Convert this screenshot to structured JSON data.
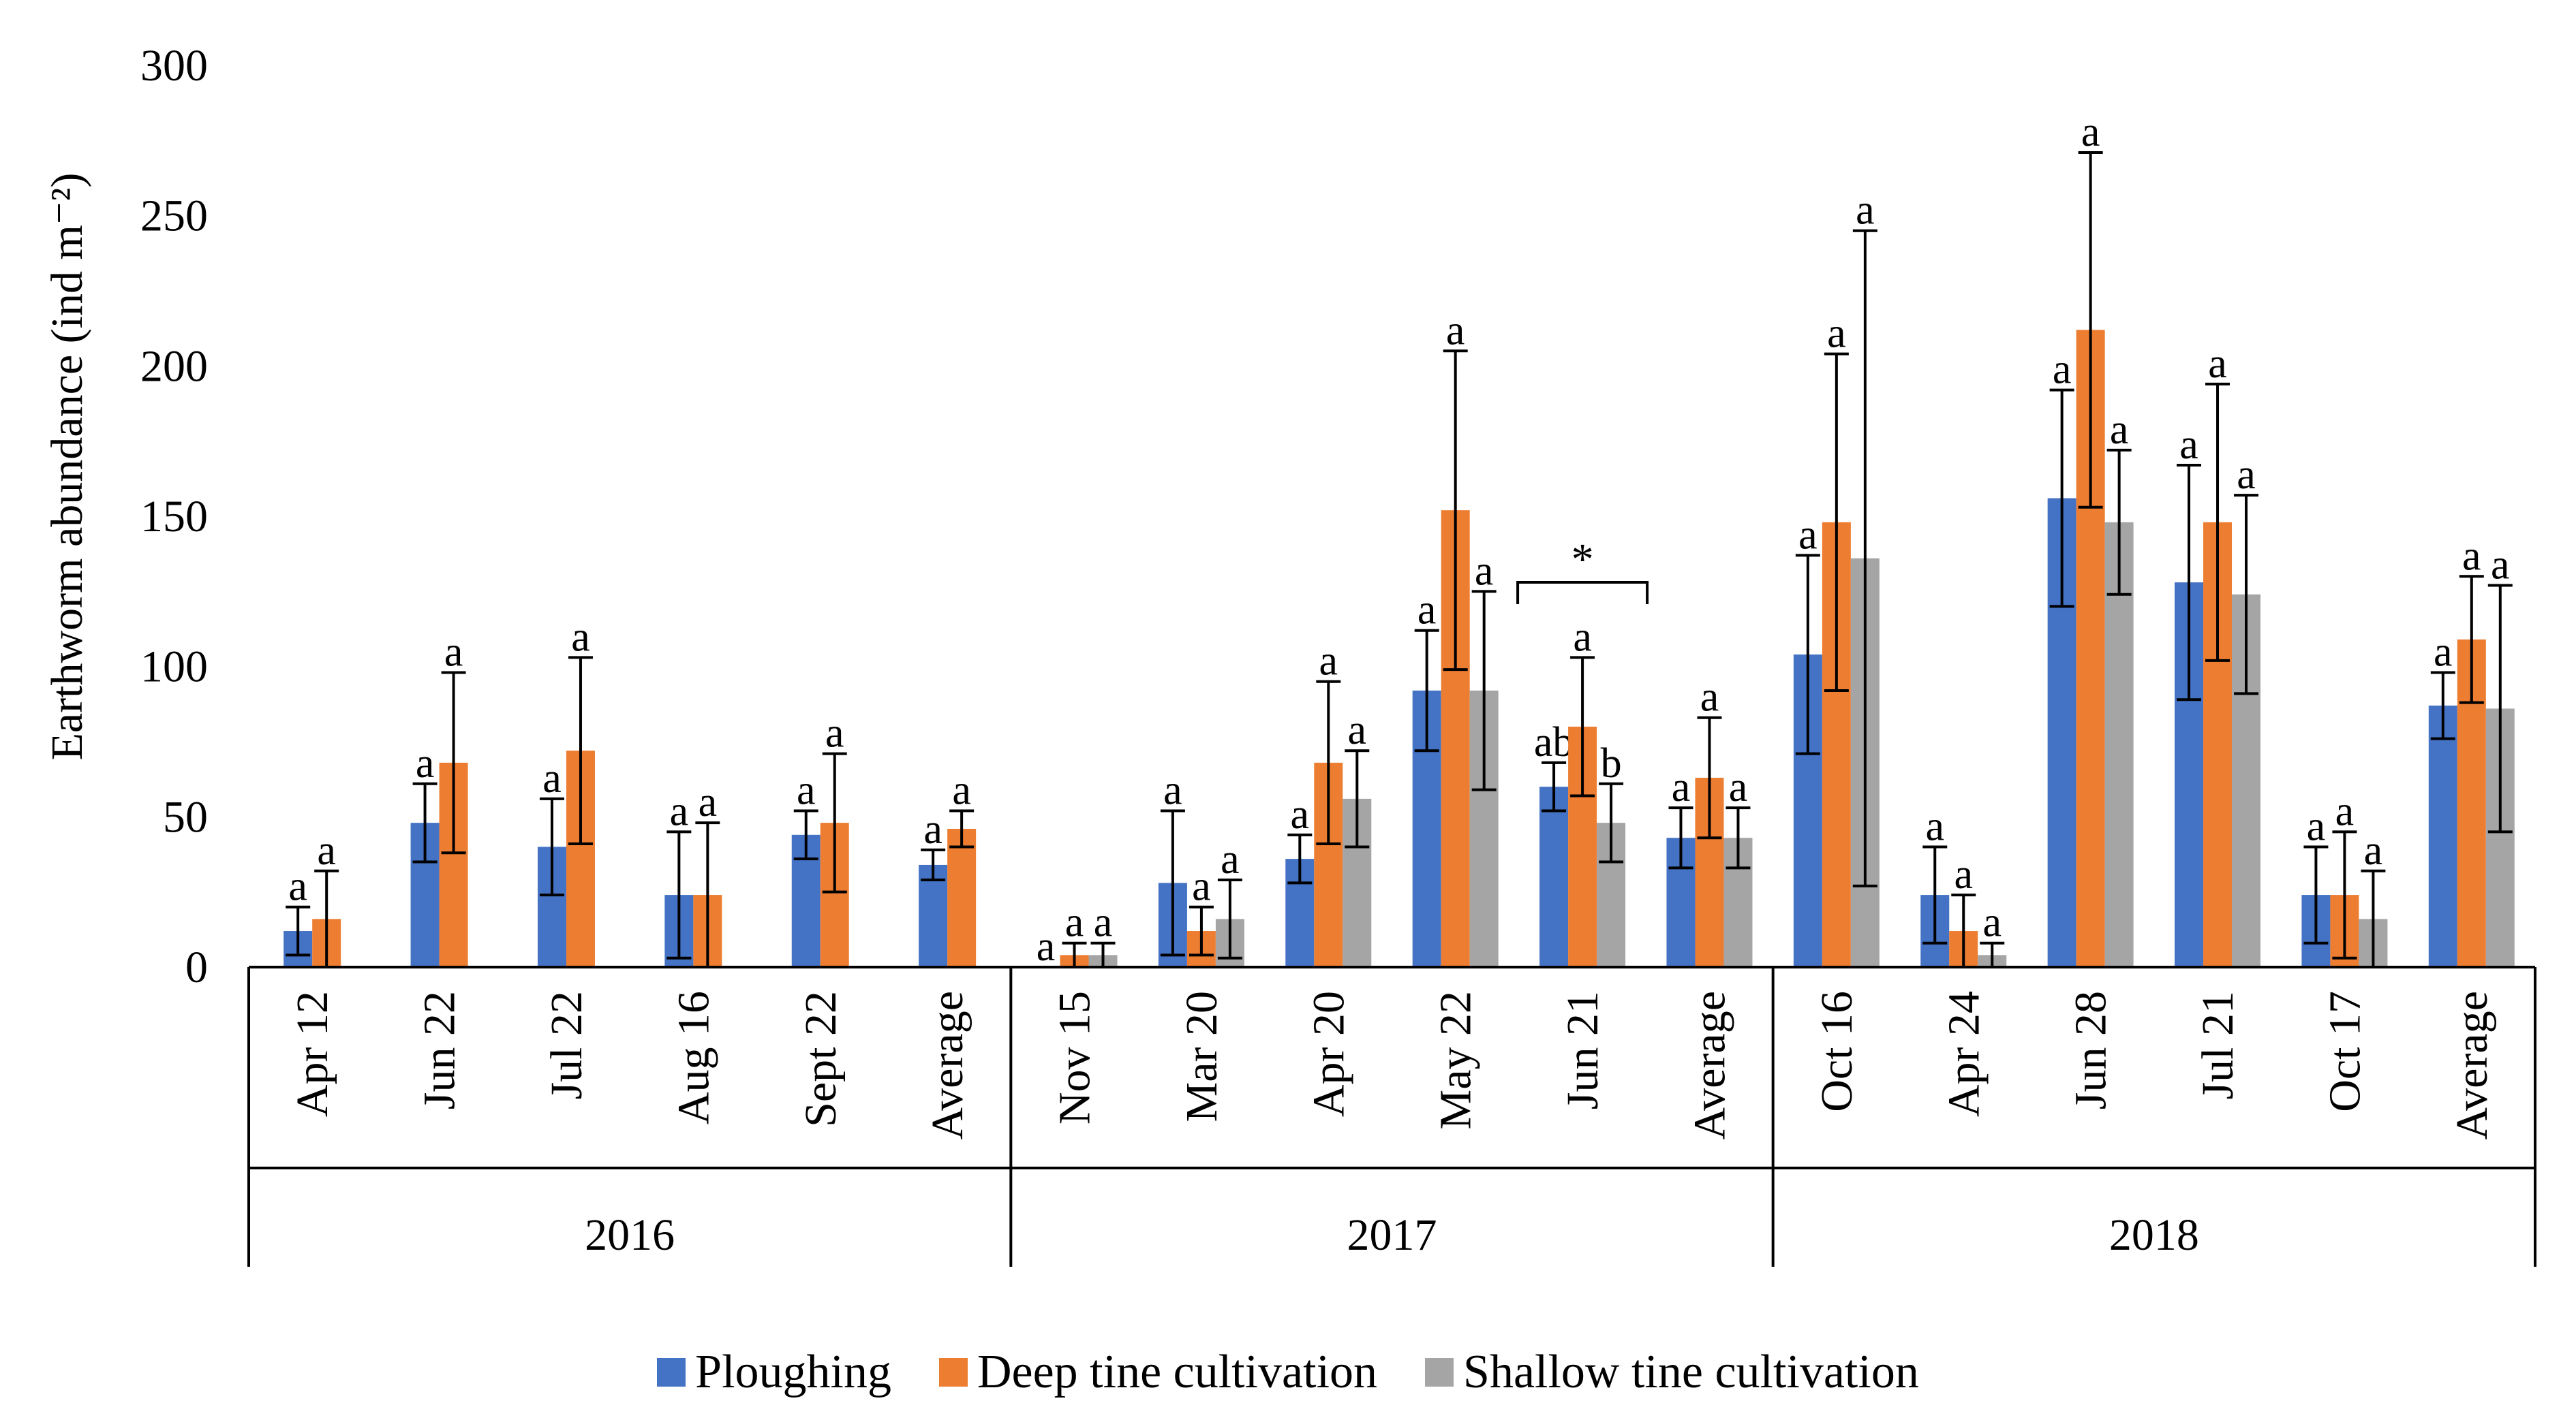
{
  "chart_data": {
    "type": "bar",
    "ylabel": "Earthworm abundance (ind m⁻²)",
    "ylim": [
      0,
      300
    ],
    "yticks": [
      0,
      50,
      100,
      150,
      200,
      250,
      300
    ],
    "grid": false,
    "legend_position": "bottom",
    "groups": [
      {
        "year": "2016",
        "categories": [
          "Apr 12",
          "Jun 22",
          "Jul 22",
          "Aug 16",
          "Sept 22",
          "Average"
        ]
      },
      {
        "year": "2017",
        "categories": [
          "Nov 15",
          "Mar 20",
          "Apr 20",
          "May 22",
          "Jun 21",
          "Average"
        ]
      },
      {
        "year": "2018",
        "categories": [
          "Oct 16",
          "Apr 24",
          "Jun 28",
          "Jul 21",
          "Oct 17",
          "Average"
        ]
      }
    ],
    "series": [
      {
        "name": "Ploughing",
        "color": "#4472C4",
        "values": [
          12,
          48,
          40,
          24,
          44,
          34,
          0,
          28,
          36,
          92,
          60,
          43,
          104,
          24,
          156,
          128,
          24,
          87
        ],
        "err": [
          8,
          13,
          16,
          21,
          8,
          5,
          0,
          24,
          8,
          20,
          8,
          10,
          33,
          16,
          36,
          39,
          16,
          11
        ],
        "letters": [
          "a",
          "a",
          "a",
          "a",
          "a",
          "a",
          "a",
          "a",
          "a",
          "a",
          "ab",
          "a",
          "a",
          "a",
          "a",
          "a",
          "a",
          "a"
        ]
      },
      {
        "name": "Deep tine cultivation",
        "color": "#ED7D31",
        "values": [
          16,
          68,
          72,
          24,
          48,
          46,
          4,
          12,
          68,
          152,
          80,
          63,
          148,
          12,
          212,
          148,
          24,
          109
        ],
        "err": [
          16,
          30,
          31,
          24,
          23,
          6,
          4,
          8,
          27,
          53,
          23,
          20,
          56,
          12,
          59,
          46,
          21,
          21
        ],
        "letters": [
          "a",
          "a",
          "a",
          "a",
          "a",
          "a",
          "a",
          "a",
          "a",
          "a",
          "a",
          "a",
          "a",
          "a",
          "a",
          "a",
          "a",
          "a"
        ]
      },
      {
        "name": "Shallow tine cultivation",
        "color": "#A5A5A5",
        "values": [
          null,
          null,
          null,
          null,
          null,
          null,
          4,
          16,
          56,
          92,
          48,
          43,
          136,
          4,
          148,
          124,
          16,
          86
        ],
        "err": [
          null,
          null,
          null,
          null,
          null,
          null,
          4,
          13,
          16,
          33,
          13,
          10,
          109,
          4,
          24,
          33,
          16,
          41
        ],
        "letters": [
          "",
          "",
          "",
          "",
          "",
          "",
          "a",
          "a",
          "a",
          "a",
          "b",
          "a",
          "a",
          "a",
          "a",
          "a",
          "a",
          "a"
        ]
      }
    ],
    "annotations": [
      {
        "text": "*",
        "category_index": 10
      }
    ]
  }
}
